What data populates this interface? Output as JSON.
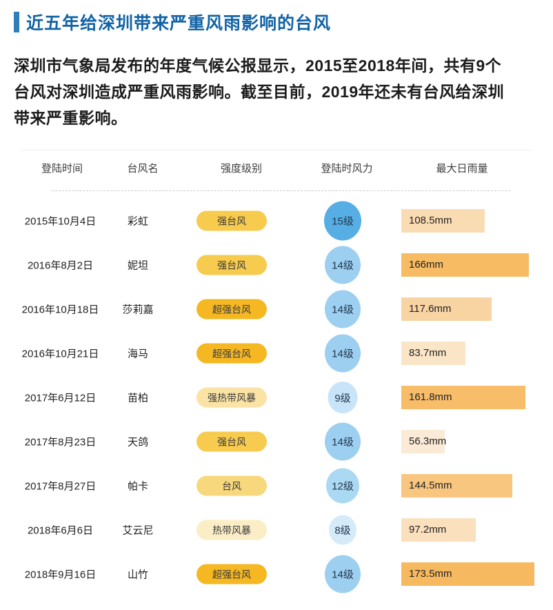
{
  "title": "近五年给深圳带来严重风雨影响的台风",
  "intro_lines": [
    "深圳市气象局发布的年度气候公报显示，2015至2018年间，共有9个",
    "台风对深圳造成严重风雨影响。截至目前，2019年还未有台风给深圳",
    "带来严重影响。"
  ],
  "colors": {
    "title_text": "#1263A6",
    "accent_bar": "#2F7EB9",
    "header_text": "#3D3D3D",
    "body_text": "#1B1B1B",
    "dashed_line": "#CCCCCC"
  },
  "table": {
    "headers": [
      "登陆时间",
      "台风名",
      "强度级别",
      "登陆时风力",
      "最大日雨量"
    ]
  },
  "styles": {
    "intensity_colors": {
      "强台风": "#F7CB4E",
      "超强台风": "#F5B722",
      "强热带风暴": "#FAE3A4",
      "台风": "#F8D87C",
      "热带风暴": "#FBEDC6"
    },
    "wind_colors": {
      "15级": "#57AEE5",
      "14级": "#9CCFF0",
      "12级": "#ABD8F3",
      "9级": "#C7E4F8",
      "8级": "#D6EBFA"
    },
    "wind_sizes": {
      "15级": 54,
      "14级": 52,
      "12级": 48,
      "9级": 43,
      "8级": 40
    }
  },
  "chart_data": {
    "type": "table",
    "title": "近五年给深圳带来严重风雨影响的台风",
    "columns": [
      "登陆时间",
      "台风名",
      "强度级别",
      "登陆时风力",
      "最大日雨量"
    ],
    "rainfall_axis_max_mm": 175,
    "rows": [
      {
        "date": "2015年10月4日",
        "name": "彩虹",
        "intensity": "强台风",
        "wind_level": "15级",
        "rainfall_mm": 108.5,
        "rain_label": "108.5mm",
        "bar_color": "#FADCB3"
      },
      {
        "date": "2016年8月2日",
        "name": "妮坦",
        "intensity": "强台风",
        "wind_level": "14级",
        "rainfall_mm": 166,
        "rain_label": "166mm",
        "bar_color": "#F7BB63"
      },
      {
        "date": "2016年10月18日",
        "name": "莎莉嘉",
        "intensity": "超强台风",
        "wind_level": "14级",
        "rainfall_mm": 117.6,
        "rain_label": "117.6mm",
        "bar_color": "#F9D4A3"
      },
      {
        "date": "2016年10月21日",
        "name": "海马",
        "intensity": "超强台风",
        "wind_level": "14级",
        "rainfall_mm": 83.7,
        "rain_label": "83.7mm",
        "bar_color": "#FBE5C7"
      },
      {
        "date": "2017年6月12日",
        "name": "苗柏",
        "intensity": "强热带风暴",
        "wind_level": "9级",
        "rainfall_mm": 161.8,
        "rain_label": "161.8mm",
        "bar_color": "#F7BD69"
      },
      {
        "date": "2017年8月23日",
        "name": "天鸽",
        "intensity": "强台风",
        "wind_level": "14级",
        "rainfall_mm": 56.3,
        "rain_label": "56.3mm",
        "bar_color": "#FBEAD5"
      },
      {
        "date": "2017年8月27日",
        "name": "帕卡",
        "intensity": "台风",
        "wind_level": "12级",
        "rainfall_mm": 144.5,
        "rain_label": "144.5mm",
        "bar_color": "#F8C67F"
      },
      {
        "date": "2018年6月6日",
        "name": "艾云尼",
        "intensity": "热带风暴",
        "wind_level": "8级",
        "rainfall_mm": 97.2,
        "rain_label": "97.2mm",
        "bar_color": "#FAE0BD"
      },
      {
        "date": "2018年9月16日",
        "name": "山竹",
        "intensity": "超强台风",
        "wind_level": "14级",
        "rainfall_mm": 173.5,
        "rain_label": "173.5mm",
        "bar_color": "#F7B95F"
      }
    ]
  }
}
